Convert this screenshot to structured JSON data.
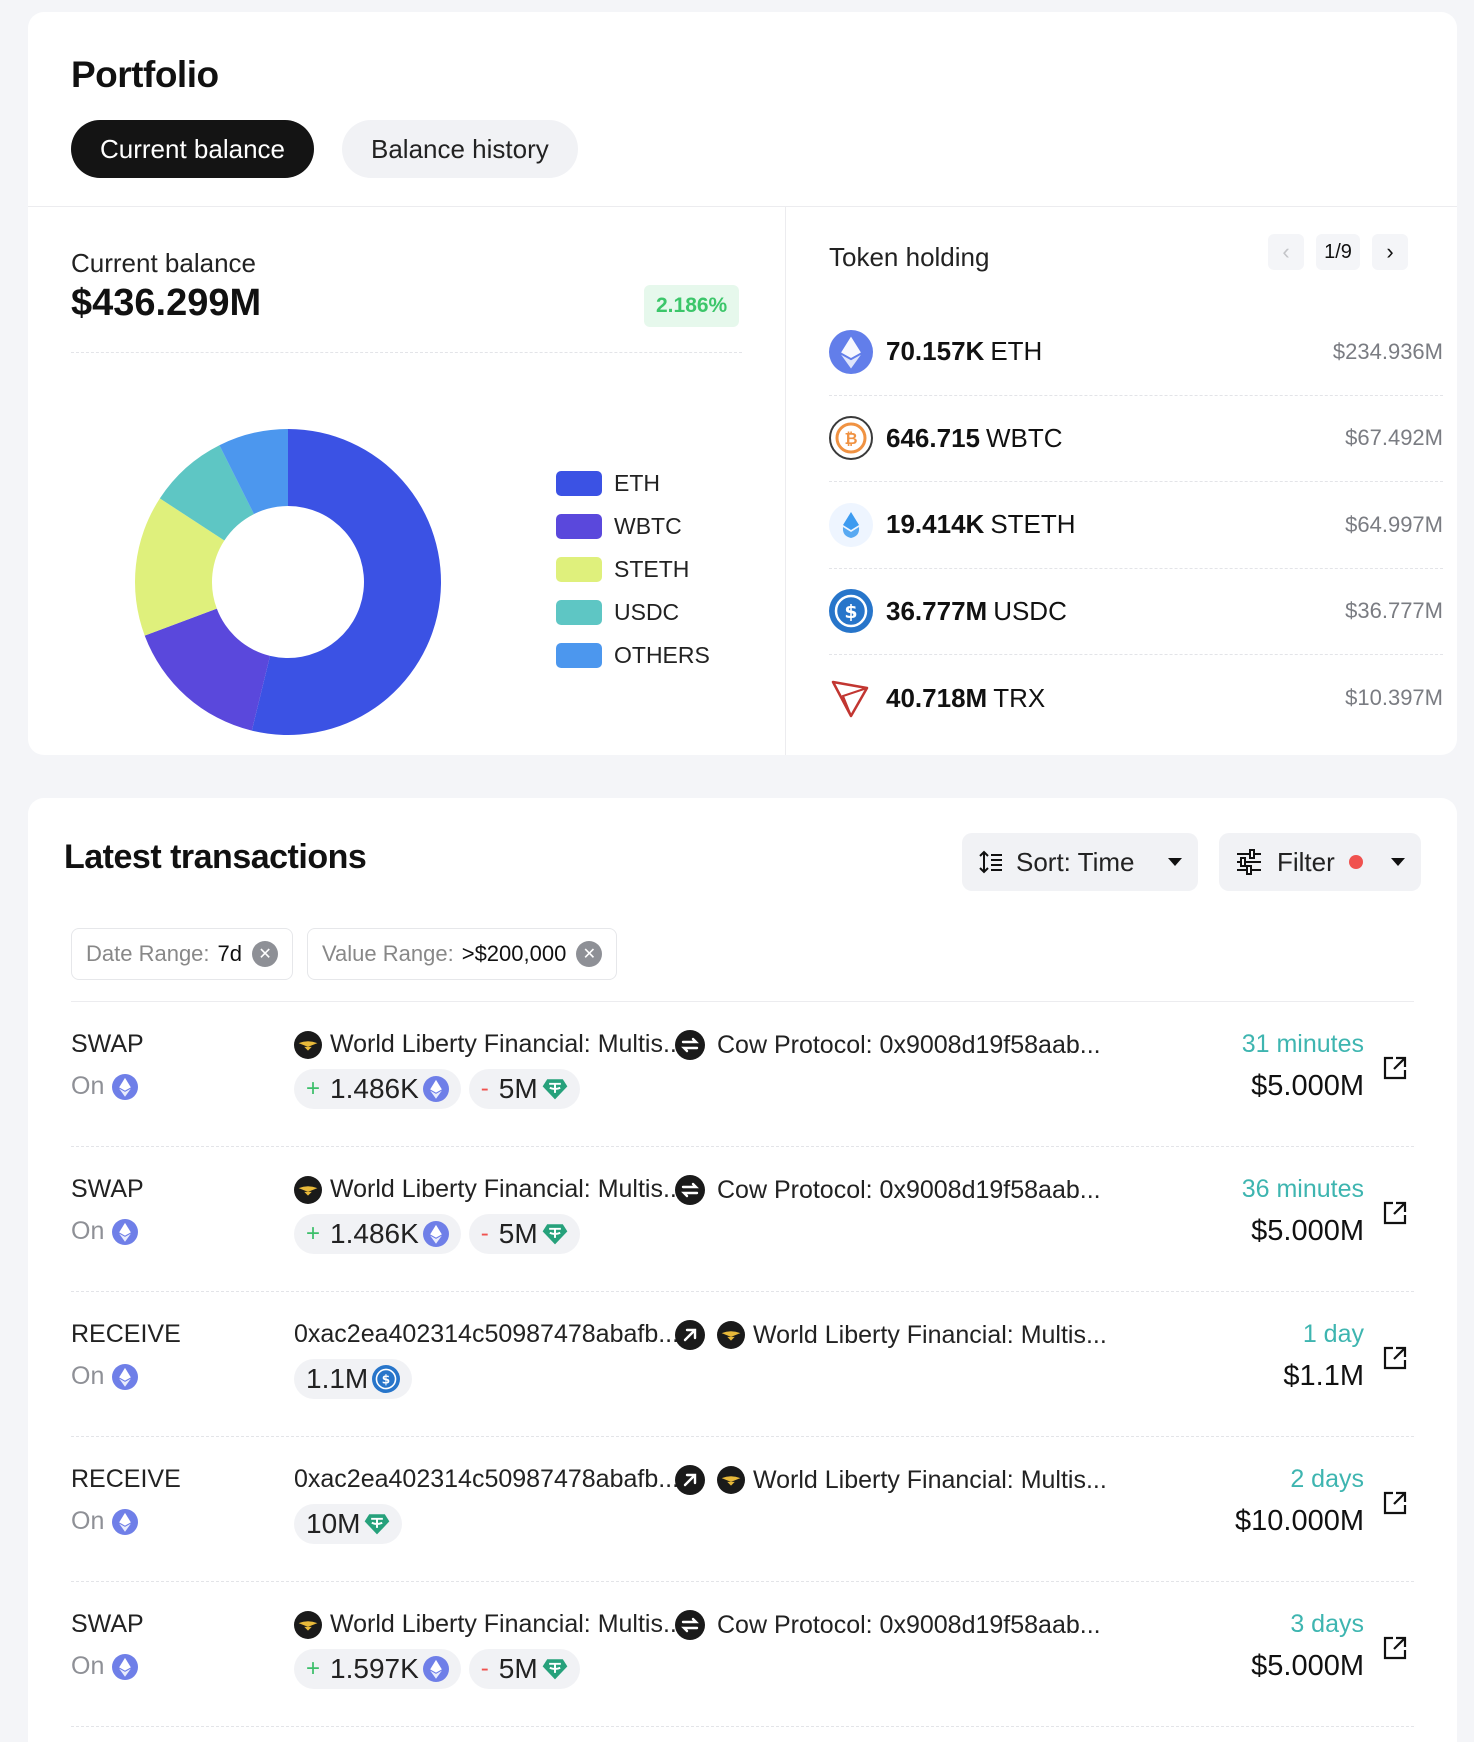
{
  "portfolio": {
    "title": "Portfolio",
    "tabs": [
      {
        "label": "Current balance"
      },
      {
        "label": "Balance history"
      }
    ],
    "balance_label": "Current balance",
    "balance_value": "$436.299M",
    "change_pct": "2.186%",
    "colors": {
      "ETH": "#3b52e4",
      "WBTC": "#5a48dc",
      "STETH": "#dff07c",
      "USDC": "#5ec6c4",
      "OTHERS": "#4c97ee"
    },
    "legend": [
      "ETH",
      "WBTC",
      "STETH",
      "USDC",
      "OTHERS"
    ]
  },
  "chart_data": {
    "type": "pie",
    "title": "Current balance",
    "labels": [
      "ETH",
      "WBTC",
      "STETH",
      "USDC",
      "OTHERS"
    ],
    "values": [
      53.8,
      15.5,
      14.9,
      8.4,
      7.4
    ],
    "unit": "% of $436.299M"
  },
  "holdings": {
    "title": "Token holding",
    "page": "1/9",
    "prev_icon": "chevron-left-icon",
    "next_icon": "chevron-right-icon",
    "items": [
      {
        "amount": "70.157K",
        "symbol": "ETH",
        "value": "$234.936M",
        "icon": "eth-icon"
      },
      {
        "amount": "646.715",
        "symbol": "WBTC",
        "value": "$67.492M",
        "icon": "wbtc-icon"
      },
      {
        "amount": "19.414K",
        "symbol": "STETH",
        "value": "$64.997M",
        "icon": "steth-icon"
      },
      {
        "amount": "36.777M",
        "symbol": "USDC",
        "value": "$36.777M",
        "icon": "usdc-icon"
      },
      {
        "amount": "40.718M",
        "symbol": "TRX",
        "value": "$10.397M",
        "icon": "trx-icon"
      }
    ]
  },
  "transactions": {
    "title": "Latest transactions",
    "sort_label": "Sort: Time",
    "filter_label": "Filter",
    "chips": [
      {
        "key": "Date Range:",
        "value": "7d"
      },
      {
        "key": "Value Range:",
        "value": ">$200,000"
      }
    ],
    "rows": [
      {
        "type": "SWAP",
        "on": "On",
        "from": "World Liberty Financial: Multis...",
        "to": "Cow Protocol: 0x9008d19f58aab...",
        "amounts": [
          {
            "sign": "+",
            "value": "1.486K",
            "token": "eth"
          },
          {
            "sign": "-",
            "value": "5M",
            "token": "usdt"
          }
        ],
        "time": "31 minutes",
        "usd": "$5.000M"
      },
      {
        "type": "SWAP",
        "on": "On",
        "from": "World Liberty Financial: Multis...",
        "to": "Cow Protocol: 0x9008d19f58aab...",
        "amounts": [
          {
            "sign": "+",
            "value": "1.486K",
            "token": "eth"
          },
          {
            "sign": "-",
            "value": "5M",
            "token": "usdt"
          }
        ],
        "time": "36 minutes",
        "usd": "$5.000M"
      },
      {
        "type": "RECEIVE",
        "on": "On",
        "from": "0xac2ea402314c50987478abafb...",
        "to": "World Liberty Financial: Multis...",
        "amounts": [
          {
            "sign": "",
            "value": "1.1M",
            "token": "usdc"
          }
        ],
        "time": "1 day",
        "usd": "$1.1M"
      },
      {
        "type": "RECEIVE",
        "on": "On",
        "from": "0xac2ea402314c50987478abafb...",
        "to": "World Liberty Financial: Multis...",
        "amounts": [
          {
            "sign": "",
            "value": "10M",
            "token": "usdt"
          }
        ],
        "time": "2 days",
        "usd": "$10.000M"
      },
      {
        "type": "SWAP",
        "on": "On",
        "from": "World Liberty Financial: Multis...",
        "to": "Cow Protocol: 0x9008d19f58aab...",
        "amounts": [
          {
            "sign": "+",
            "value": "1.597K",
            "token": "eth"
          },
          {
            "sign": "-",
            "value": "5M",
            "token": "usdt"
          }
        ],
        "time": "3 days",
        "usd": "$5.000M"
      }
    ]
  }
}
